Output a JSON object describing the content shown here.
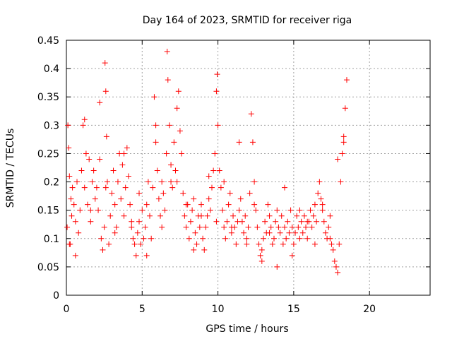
{
  "chart_data": {
    "type": "scatter",
    "title": "Day 164 of 2023, SRMTID for receiver riga",
    "xlabel": "GPS time / hours",
    "ylabel": "SRMTID / TECUs",
    "xlim": [
      0,
      24
    ],
    "ylim": [
      0,
      0.45
    ],
    "xticks": [
      "0",
      "5",
      "10",
      "15",
      "20"
    ],
    "yticks": [
      "0",
      "0.05",
      "0.1",
      "0.15",
      "0.2",
      "0.25",
      "0.3",
      "0.35",
      "0.4",
      "0.45"
    ],
    "grid": true,
    "legend": "none",
    "marker": "+",
    "marker_color": "#ff0000",
    "series": [
      {
        "x": [
          0.05,
          0.1,
          0.15,
          0.2,
          0.25,
          0.3,
          0.35,
          0.4,
          0.5,
          0.6,
          0.7,
          0.8,
          0.9,
          1.0,
          1.1,
          1.2,
          1.3,
          1.4,
          1.5,
          1.6,
          1.7,
          1.8,
          1.9,
          2.0,
          2.1,
          2.2,
          2.3,
          2.4,
          2.5,
          2.55,
          2.6,
          2.65,
          2.7,
          2.8,
          2.9,
          3.0,
          3.1,
          3.2,
          3.3,
          3.4,
          3.5,
          3.6,
          3.7,
          3.8,
          3.9,
          4.0,
          4.1,
          4.2,
          4.3,
          4.4,
          4.5,
          4.6,
          4.7,
          4.8,
          4.9,
          5.0,
          5.1,
          5.2,
          5.3,
          5.4,
          5.5,
          5.6,
          5.7,
          5.8,
          5.9,
          6.0,
          6.1,
          6.2,
          6.3,
          6.4,
          6.5,
          6.6,
          6.65,
          6.7,
          6.8,
          6.9,
          7.0,
          7.1,
          7.2,
          7.3,
          7.4,
          7.5,
          7.6,
          7.7,
          7.8,
          7.9,
          8.0,
          8.1,
          8.2,
          8.3,
          8.4,
          8.5,
          8.6,
          8.7,
          8.8,
          8.9,
          9.0,
          9.1,
          9.2,
          9.3,
          9.4,
          9.5,
          9.6,
          9.7,
          9.8,
          9.9,
          9.95,
          10.0,
          10.1,
          10.2,
          10.3,
          10.4,
          10.5,
          10.6,
          10.7,
          10.8,
          10.9,
          11.0,
          11.1,
          11.2,
          11.3,
          11.4,
          11.5,
          11.6,
          11.7,
          11.8,
          11.9,
          12.0,
          12.1,
          12.2,
          12.3,
          12.4,
          12.5,
          12.6,
          12.7,
          12.8,
          12.9,
          13.0,
          13.1,
          13.2,
          13.3,
          13.4,
          13.5,
          13.6,
          13.7,
          13.8,
          13.9,
          14.0,
          14.1,
          14.2,
          14.3,
          14.4,
          14.5,
          14.6,
          14.7,
          14.8,
          14.9,
          15.0,
          15.1,
          15.2,
          15.3,
          15.4,
          15.5,
          15.6,
          15.7,
          15.8,
          15.9,
          16.0,
          16.1,
          16.2,
          16.3,
          16.4,
          16.5,
          16.6,
          16.7,
          16.8,
          16.9,
          17.0,
          17.1,
          17.2,
          17.3,
          17.4,
          17.5,
          17.6,
          17.7,
          17.8,
          17.9,
          18.0,
          18.1,
          18.2,
          18.3,
          18.4,
          18.5,
          0.2,
          0.6,
          1.2,
          1.6,
          2.2,
          2.6,
          3.2,
          3.8,
          4.3,
          4.8,
          5.3,
          5.9,
          6.3,
          6.9,
          7.3,
          7.9,
          8.4,
          8.9,
          9.4,
          9.9,
          10.4,
          10.9,
          11.4,
          11.9,
          12.4,
          12.9,
          13.4,
          13.9,
          14.4,
          14.9,
          15.4,
          15.9,
          16.4,
          16.9,
          17.4,
          17.9,
          18.3
        ],
        "y": [
          0.12,
          0.3,
          0.26,
          0.21,
          0.09,
          0.17,
          0.14,
          0.19,
          0.16,
          0.13,
          0.2,
          0.11,
          0.15,
          0.22,
          0.3,
          0.19,
          0.25,
          0.16,
          0.24,
          0.13,
          0.2,
          0.22,
          0.17,
          0.19,
          0.15,
          0.24,
          0.1,
          0.08,
          0.12,
          0.41,
          0.36,
          0.28,
          0.2,
          0.09,
          0.14,
          0.18,
          0.22,
          0.16,
          0.12,
          0.2,
          0.25,
          0.17,
          0.23,
          0.14,
          0.19,
          0.26,
          0.21,
          0.16,
          0.12,
          0.1,
          0.09,
          0.07,
          0.11,
          0.13,
          0.09,
          0.15,
          0.1,
          0.12,
          0.16,
          0.2,
          0.14,
          0.1,
          0.19,
          0.35,
          0.3,
          0.22,
          0.17,
          0.14,
          0.2,
          0.18,
          0.15,
          0.25,
          0.43,
          0.38,
          0.3,
          0.23,
          0.19,
          0.27,
          0.22,
          0.2,
          0.36,
          0.29,
          0.25,
          0.18,
          0.14,
          0.12,
          0.16,
          0.1,
          0.13,
          0.15,
          0.17,
          0.11,
          0.09,
          0.14,
          0.12,
          0.16,
          0.1,
          0.08,
          0.12,
          0.14,
          0.17,
          0.15,
          0.19,
          0.22,
          0.25,
          0.36,
          0.39,
          0.3,
          0.22,
          0.19,
          0.15,
          0.12,
          0.1,
          0.13,
          0.16,
          0.18,
          0.11,
          0.14,
          0.12,
          0.09,
          0.13,
          0.15,
          0.17,
          0.13,
          0.11,
          0.14,
          0.1,
          0.12,
          0.18,
          0.32,
          0.27,
          0.2,
          0.15,
          0.12,
          0.09,
          0.07,
          0.06,
          0.1,
          0.13,
          0.11,
          0.16,
          0.14,
          0.12,
          0.09,
          0.1,
          0.13,
          0.15,
          0.12,
          0.11,
          0.14,
          0.09,
          0.12,
          0.1,
          0.13,
          0.11,
          0.15,
          0.12,
          0.09,
          0.11,
          0.14,
          0.12,
          0.1,
          0.13,
          0.11,
          0.14,
          0.12,
          0.1,
          0.13,
          0.15,
          0.12,
          0.14,
          0.16,
          0.13,
          0.18,
          0.2,
          0.17,
          0.15,
          0.13,
          0.11,
          0.1,
          0.12,
          0.14,
          0.09,
          0.08,
          0.06,
          0.05,
          0.04,
          0.09,
          0.2,
          0.25,
          0.28,
          0.33,
          0.38,
          0.09,
          0.07,
          0.31,
          0.15,
          0.34,
          0.19,
          0.11,
          0.25,
          0.13,
          0.18,
          0.07,
          0.27,
          0.12,
          0.2,
          0.33,
          0.16,
          0.08,
          0.14,
          0.21,
          0.13,
          0.2,
          0.12,
          0.27,
          0.09,
          0.16,
          0.08,
          0.11,
          0.05,
          0.19,
          0.07,
          0.15,
          0.13,
          0.09,
          0.16,
          0.1,
          0.24,
          0.27
        ]
      }
    ]
  }
}
